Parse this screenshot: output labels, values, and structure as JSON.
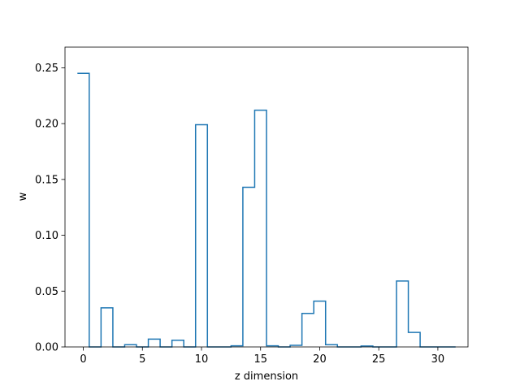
{
  "chart_data": {
    "type": "step",
    "title": "",
    "xlabel": "z dimension",
    "ylabel": "w",
    "xlim": [
      -1.55,
      32.55
    ],
    "ylim": [
      0,
      0.2685
    ],
    "x_ticks": [
      0,
      5,
      10,
      15,
      20,
      25,
      30
    ],
    "x_tick_labels": [
      "0",
      "5",
      "10",
      "15",
      "20",
      "25",
      "30"
    ],
    "y_ticks": [
      0.0,
      0.05,
      0.1,
      0.15,
      0.2,
      0.25
    ],
    "y_tick_labels": [
      "0.00",
      "0.05",
      "0.10",
      "0.15",
      "0.20",
      "0.25"
    ],
    "grid": false,
    "series": [
      {
        "color": "#1f77b4",
        "x": [
          0,
          1,
          2,
          3,
          4,
          5,
          6,
          7,
          8,
          9,
          10,
          11,
          12,
          13,
          14,
          15,
          16,
          17,
          18,
          19,
          20,
          21,
          22,
          23,
          24,
          25,
          26,
          27,
          28,
          29,
          30,
          31
        ],
        "values": [
          0.245,
          0.0,
          0.035,
          0.0,
          0.002,
          0.0,
          0.007,
          0.0,
          0.006,
          0.0,
          0.199,
          0.0,
          0.0,
          0.001,
          0.143,
          0.212,
          0.001,
          0.0,
          0.0015,
          0.03,
          0.041,
          0.002,
          0.0,
          0.0,
          0.0008,
          0.0,
          0.0,
          0.059,
          0.013,
          0.0,
          0.0,
          0.0
        ]
      }
    ]
  }
}
